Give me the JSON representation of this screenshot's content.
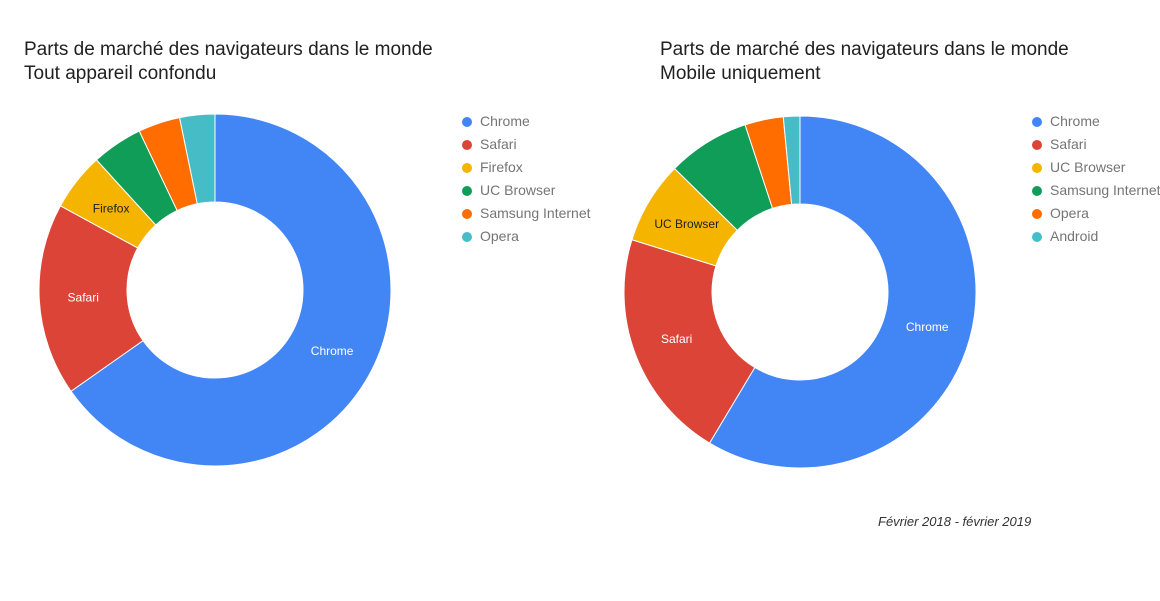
{
  "charts": [
    {
      "title": [
        "Parts de marché des navigateurs dans le monde",
        "Tout appareil confondu"
      ]
    },
    {
      "title": [
        "Parts de marché des navigateurs dans le monde",
        "Mobile uniquement"
      ]
    }
  ],
  "footnote": "Février 2018 - février 2019",
  "chart_data": [
    {
      "type": "pie",
      "donut": true,
      "title": "Parts de marché des navigateurs dans le monde — Tout appareil confondu",
      "legend_position": "right",
      "slices": [
        {
          "label": "Chrome",
          "value": 62.7,
          "color": "#4285F4",
          "slice_label": "Chrome",
          "label_color": "#ffffff"
        },
        {
          "label": "Safari",
          "value": 17.0,
          "color": "#DB4437",
          "slice_label": "Safari",
          "label_color": "#ffffff"
        },
        {
          "label": "Firefox",
          "value": 5.1,
          "color": "#F4B400",
          "slice_label": "Firefox",
          "label_color": "#212121"
        },
        {
          "label": "UC Browser",
          "value": 4.5,
          "color": "#0F9D58",
          "slice_label": "",
          "label_color": "#ffffff"
        },
        {
          "label": "Samsung Internet",
          "value": 3.7,
          "color": "#FF6D00",
          "slice_label": "",
          "label_color": "#ffffff"
        },
        {
          "label": "Opera",
          "value": 3.1,
          "color": "#46BDC6",
          "slice_label": "",
          "label_color": "#ffffff"
        }
      ]
    },
    {
      "type": "pie",
      "donut": true,
      "title": "Parts de marché des navigateurs dans le monde — Mobile uniquement",
      "legend_position": "right",
      "slices": [
        {
          "label": "Chrome",
          "value": 58.0,
          "color": "#4285F4",
          "slice_label": "Chrome",
          "label_color": "#ffffff"
        },
        {
          "label": "Safari",
          "value": 21.0,
          "color": "#DB4437",
          "slice_label": "Safari",
          "label_color": "#ffffff"
        },
        {
          "label": "UC Browser",
          "value": 7.5,
          "color": "#F4B400",
          "slice_label": "UC Browser",
          "label_color": "#212121"
        },
        {
          "label": "Samsung Internet",
          "value": 7.5,
          "color": "#0F9D58",
          "slice_label": "",
          "label_color": "#ffffff"
        },
        {
          "label": "Opera",
          "value": 3.5,
          "color": "#FF6D00",
          "slice_label": "",
          "label_color": "#ffffff"
        },
        {
          "label": "Android",
          "value": 1.5,
          "color": "#46BDC6",
          "slice_label": "",
          "label_color": "#ffffff"
        }
      ]
    }
  ]
}
